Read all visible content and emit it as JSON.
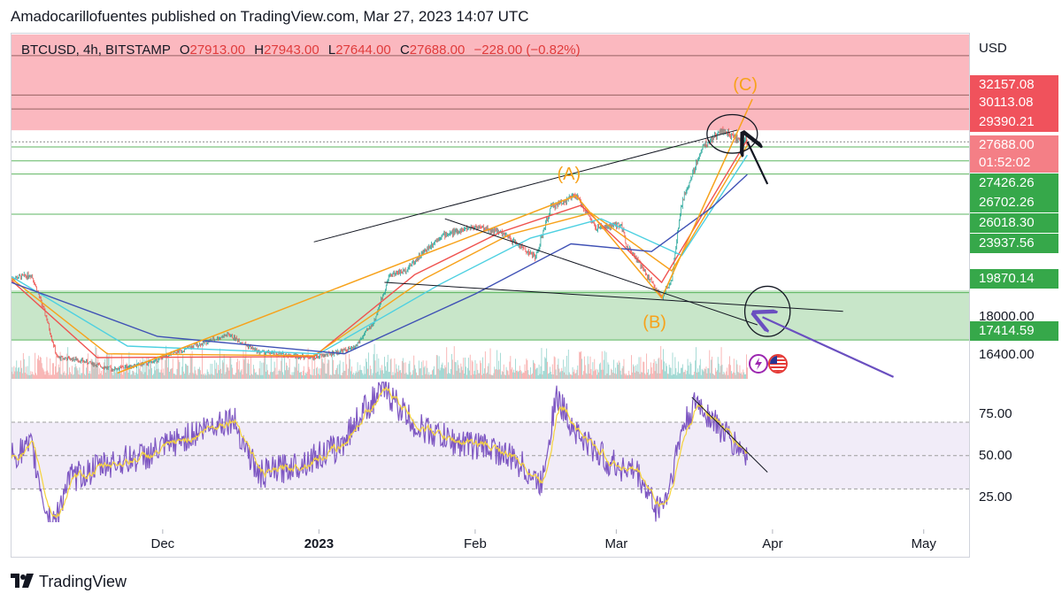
{
  "header": {
    "publisher": "Amadocarillofuentes published on TradingView.com, Mar 27, 2023 14:07 UTC"
  },
  "legend": {
    "symbol": "BTCUSD, 4h, BITSTAMP",
    "open_label": "O",
    "open": "27913.00",
    "high_label": "H",
    "high": "27943.00",
    "low_label": "L",
    "low": "27644.00",
    "close_label": "C",
    "close": "27688.00",
    "change": "−228.00 (−0.82%)"
  },
  "axis": {
    "currency": "USD",
    "price_tags": [
      {
        "text": "32157.08",
        "value": 32157.08,
        "style": "red"
      },
      {
        "text": "30113.08",
        "value": 30113.08,
        "style": "red"
      },
      {
        "text": "29390.21",
        "value": 29390.21,
        "style": "red"
      },
      {
        "text": "27688.00",
        "value": 27688.0,
        "style": "red-light"
      },
      {
        "text": "01:52:02",
        "value": 0,
        "style": "red-light"
      },
      {
        "text": "27426.26",
        "value": 27426.26,
        "style": "green"
      },
      {
        "text": "26702.26",
        "value": 26702.26,
        "style": "green"
      },
      {
        "text": "26018.30",
        "value": 26018.3,
        "style": "green"
      },
      {
        "text": "23937.56",
        "value": 23937.56,
        "style": "green"
      },
      {
        "text": "19870.14",
        "value": 19870.14,
        "style": "green"
      },
      {
        "text": "18000.00",
        "value": 18000.0,
        "style": "plain"
      },
      {
        "text": "17414.59",
        "value": 17414.59,
        "style": "green"
      },
      {
        "text": "16400.00",
        "value": 16400.0,
        "style": "plain"
      }
    ],
    "rsi_ticks": [
      {
        "text": "75.00",
        "value": 75
      },
      {
        "text": "50.00",
        "value": 50
      },
      {
        "text": "25.00",
        "value": 25
      }
    ],
    "x_labels": [
      "Dec",
      "2023",
      "Feb",
      "Mar",
      "Apr",
      "May"
    ]
  },
  "annotations": {
    "wave_a": "(A)",
    "wave_b": "(B)",
    "wave_c": "(C)"
  },
  "colors": {
    "resistance_zone": "#fbb8bf",
    "support_zone": "#c8e6c9",
    "candle_up": "#26a69a",
    "candle_down": "#ef5350",
    "wave_line": "#f7a21b",
    "rsi_line": "#7e57c2",
    "rsi_signal": "#f5d33b",
    "ma_fast": "#ef5350",
    "ma_mid": "#f7a21b",
    "ma_slow": "#4dd0e1",
    "ma_long": "#3f51b5",
    "arrow_purple": "#6a4fc0"
  },
  "footer": {
    "brand": "TradingView"
  },
  "chart_data": {
    "type": "candlestick",
    "symbol": "BTCUSD",
    "interval": "4h",
    "exchange": "BITSTAMP",
    "ylim": [
      15400,
      33300
    ],
    "x_range": [
      "2022-11-01",
      "2023-05-10"
    ],
    "ohlc_last": {
      "open": 27913.0,
      "high": 27943.0,
      "low": 27644.0,
      "close": 27688.0,
      "change": -228.0,
      "change_pct": -0.82
    },
    "resistance_zone": [
      29390.21,
      32157.08
    ],
    "support_zones": [
      [
        26018.3,
        27426.26
      ],
      [
        17414.59,
        19870.14
      ]
    ],
    "horizontal_levels": [
      32157.08,
      30113.08,
      29390.21,
      27426.26,
      26702.26,
      26018.3,
      23937.56,
      19870.14,
      17414.59
    ],
    "price_path": [
      [
        "2022-11-01",
        20600
      ],
      [
        "2022-11-05",
        20800
      ],
      [
        "2022-11-08",
        18500
      ],
      [
        "2022-11-10",
        16500
      ],
      [
        "2022-11-14",
        16400
      ],
      [
        "2022-11-21",
        15900
      ],
      [
        "2022-11-28",
        16200
      ],
      [
        "2022-12-05",
        16900
      ],
      [
        "2022-12-14",
        17700
      ],
      [
        "2022-12-20",
        16800
      ],
      [
        "2022-12-31",
        16500
      ],
      [
        "2023-01-08",
        17000
      ],
      [
        "2023-01-12",
        18400
      ],
      [
        "2023-01-15",
        20800
      ],
      [
        "2023-01-18",
        21000
      ],
      [
        "2023-01-25",
        22800
      ],
      [
        "2023-02-01",
        23300
      ],
      [
        "2023-02-06",
        23000
      ],
      [
        "2023-02-13",
        21700
      ],
      [
        "2023-02-16",
        24300
      ],
      [
        "2023-02-21",
        24900
      ],
      [
        "2023-02-25",
        23200
      ],
      [
        "2023-03-02",
        23400
      ],
      [
        "2023-03-03",
        22400
      ],
      [
        "2023-03-10",
        19600
      ],
      [
        "2023-03-12",
        20600
      ],
      [
        "2023-03-14",
        24500
      ],
      [
        "2023-03-18",
        27400
      ],
      [
        "2023-03-22",
        28300
      ],
      [
        "2023-03-25",
        27800
      ],
      [
        "2023-03-27",
        27688
      ]
    ],
    "moving_averages": [
      {
        "name": "",
        "color": "#ef5350",
        "points": [
          [
            "2022-11-01",
            20500
          ],
          [
            "2022-11-18",
            16500
          ],
          [
            "2022-12-31",
            16550
          ],
          [
            "2023-01-20",
            20800
          ],
          [
            "2023-02-06",
            23000
          ],
          [
            "2023-02-22",
            24400
          ],
          [
            "2023-03-10",
            20400
          ],
          [
            "2023-03-27",
            27800
          ]
        ]
      },
      {
        "name": "",
        "color": "#f7a21b",
        "points": [
          [
            "2022-11-01",
            20600
          ],
          [
            "2022-11-20",
            16700
          ],
          [
            "2022-12-31",
            16600
          ],
          [
            "2023-01-22",
            20600
          ],
          [
            "2023-02-08",
            22900
          ],
          [
            "2023-02-24",
            24000
          ],
          [
            "2023-03-12",
            21000
          ],
          [
            "2023-03-27",
            27500
          ]
        ]
      },
      {
        "name": "",
        "color": "#4dd0e1",
        "points": [
          [
            "2022-11-01",
            20700
          ],
          [
            "2022-11-24",
            17100
          ],
          [
            "2023-01-01",
            16700
          ],
          [
            "2023-01-25",
            20300
          ],
          [
            "2023-02-12",
            22700
          ],
          [
            "2023-02-26",
            23700
          ],
          [
            "2023-03-14",
            21800
          ],
          [
            "2023-03-27",
            27000
          ]
        ]
      },
      {
        "name": "",
        "color": "#3f51b5",
        "points": [
          [
            "2022-11-01",
            20400
          ],
          [
            "2022-11-30",
            17600
          ],
          [
            "2023-01-06",
            16700
          ],
          [
            "2023-02-01",
            19800
          ],
          [
            "2023-02-20",
            22400
          ],
          [
            "2023-03-08",
            22000
          ],
          [
            "2023-03-20",
            24300
          ],
          [
            "2023-03-27",
            26000
          ]
        ]
      }
    ],
    "elliott_wave": [
      {
        "label": "(A)",
        "date": "2023-02-21",
        "price": 24900
      },
      {
        "label": "(B)",
        "date": "2023-03-10",
        "price": 19600
      },
      {
        "label": "(C)",
        "date": "2023-03-28",
        "price": 29900
      }
    ],
    "wave_start": {
      "date": "2022-11-22",
      "price": 15700
    },
    "trendlines": [
      {
        "from": [
          "2022-12-31",
          22500
        ],
        "to": [
          "2023-03-25",
          28300
        ],
        "color": "#131722"
      },
      {
        "from": [
          "2023-01-14",
          20400
        ],
        "to": [
          "2023-04-15",
          18900
        ],
        "color": "#131722"
      },
      {
        "from": [
          "2023-01-26",
          23700
        ],
        "to": [
          "2023-03-29",
          18200
        ],
        "color": "#131722"
      }
    ],
    "ellipses": [
      {
        "center": [
          "2023-03-24",
          28100
        ],
        "rx_days": 5,
        "ry_price": 1000
      },
      {
        "center": [
          "2023-03-31",
          18900
        ],
        "rx_days": 4.5,
        "ry_price": 1300
      }
    ],
    "arrows": [
      {
        "from": [
          "2023-03-31",
          25500
        ],
        "to": [
          "2023-03-27",
          27700
        ],
        "color": "#131722"
      },
      {
        "from": [
          "2023-04-25",
          15500
        ],
        "to": [
          "2023-03-30",
          18600
        ],
        "color": "#6a4fc0"
      }
    ],
    "rsi": {
      "levels": [
        70,
        50,
        30
      ],
      "ticks": [
        25,
        50,
        75
      ],
      "ylim": [
        10,
        95
      ],
      "points": [
        [
          "2022-11-01",
          50
        ],
        [
          "2022-11-05",
          55
        ],
        [
          "2022-11-08",
          15
        ],
        [
          "2022-11-10",
          12
        ],
        [
          "2022-11-12",
          35
        ],
        [
          "2022-11-20",
          45
        ],
        [
          "2022-11-28",
          50
        ],
        [
          "2022-12-05",
          60
        ],
        [
          "2022-12-12",
          70
        ],
        [
          "2022-12-15",
          72
        ],
        [
          "2022-12-20",
          38
        ],
        [
          "2022-12-28",
          45
        ],
        [
          "2023-01-05",
          55
        ],
        [
          "2023-01-10",
          78
        ],
        [
          "2023-01-14",
          90
        ],
        [
          "2023-01-20",
          68
        ],
        [
          "2023-01-28",
          58
        ],
        [
          "2023-02-04",
          55
        ],
        [
          "2023-02-10",
          45
        ],
        [
          "2023-02-14",
          32
        ],
        [
          "2023-02-17",
          85
        ],
        [
          "2023-02-22",
          60
        ],
        [
          "2023-02-28",
          45
        ],
        [
          "2023-03-05",
          40
        ],
        [
          "2023-03-09",
          18
        ],
        [
          "2023-03-11",
          25
        ],
        [
          "2023-03-14",
          65
        ],
        [
          "2023-03-17",
          82
        ],
        [
          "2023-03-20",
          72
        ],
        [
          "2023-03-24",
          58
        ],
        [
          "2023-03-27",
          50
        ]
      ],
      "trendline": {
        "from": [
          "2023-03-16",
          85
        ],
        "to": [
          "2023-03-31",
          40
        ]
      }
    }
  }
}
